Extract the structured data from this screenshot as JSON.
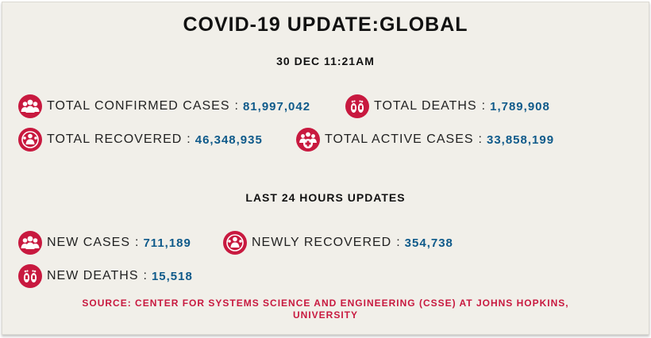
{
  "header": {
    "title": "COVID-19 UPDATE:GLOBAL",
    "datetime": "30 DEC 11:21AM"
  },
  "totals": {
    "confirmed": {
      "label": "TOTAL CONFIRMED CASES",
      "value": "81,997,042",
      "icon": "people-group-icon"
    },
    "deaths": {
      "label": "TOTAL DEATHS",
      "value": "1,789,908",
      "icon": "footprints-icon"
    },
    "recovered": {
      "label": "TOTAL RECOVERED",
      "value": "46,348,935",
      "icon": "recovered-person-icon"
    },
    "active": {
      "label": "TOTAL ACTIVE CASES",
      "value": "33,858,199",
      "icon": "people-plus-icon"
    }
  },
  "last24": {
    "heading": "LAST 24 HOURS UPDATES",
    "new_cases": {
      "label": "NEW CASES",
      "value": "711,189",
      "icon": "people-group-icon"
    },
    "newly_recovered": {
      "label": "NEWLY RECOVERED",
      "value": "354,738",
      "icon": "recovered-person-icon"
    },
    "new_deaths": {
      "label": "NEW DEATHS",
      "value": "15,518",
      "icon": "footprints-icon"
    }
  },
  "source": {
    "line1": "SOURCE: CENTER FOR SYSTEMS SCIENCE AND ENGINEERING (CSSE) AT JOHNS HOPKINS,",
    "line2": "UNIVERSITY"
  },
  "separator": ":",
  "colors": {
    "accent": "#c8193f",
    "value": "#0f5a8a",
    "background": "#f1efe9"
  }
}
